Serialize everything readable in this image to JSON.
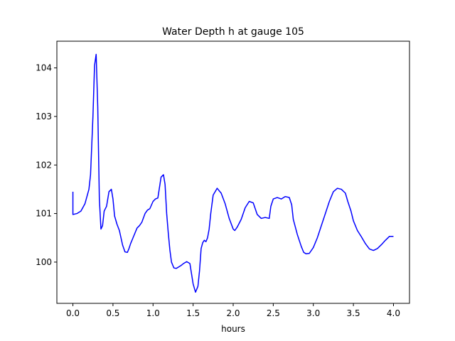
{
  "chart_data": {
    "type": "line",
    "title": "Water Depth h at gauge 105",
    "xlabel": "hours",
    "ylabel": "",
    "xlim": [
      -0.2,
      4.2
    ],
    "ylim": [
      99.15,
      104.55
    ],
    "xticks": [
      0.0,
      0.5,
      1.0,
      1.5,
      2.0,
      2.5,
      3.0,
      3.5,
      4.0
    ],
    "xtick_labels": [
      "0.0",
      "0.5",
      "1.0",
      "1.5",
      "2.0",
      "2.5",
      "3.0",
      "3.5",
      "4.0"
    ],
    "yticks": [
      100,
      101,
      102,
      103,
      104
    ],
    "ytick_labels": [
      "100",
      "101",
      "102",
      "103",
      "104"
    ],
    "grid": false,
    "series": [
      {
        "color": "#0000ff",
        "x": [
          0.0,
          0.0,
          0.05,
          0.1,
          0.15,
          0.2,
          0.22,
          0.25,
          0.27,
          0.29,
          0.31,
          0.33,
          0.35,
          0.37,
          0.39,
          0.42,
          0.45,
          0.48,
          0.5,
          0.52,
          0.55,
          0.58,
          0.62,
          0.65,
          0.68,
          0.7,
          0.72,
          0.75,
          0.8,
          0.83,
          0.86,
          0.9,
          0.93,
          0.96,
          1.0,
          1.03,
          1.06,
          1.1,
          1.13,
          1.15,
          1.17,
          1.19,
          1.21,
          1.23,
          1.26,
          1.29,
          1.32,
          1.35,
          1.38,
          1.42,
          1.46,
          1.5,
          1.53,
          1.56,
          1.58,
          1.6,
          1.62,
          1.64,
          1.66,
          1.68,
          1.7,
          1.72,
          1.75,
          1.8,
          1.85,
          1.9,
          1.95,
          2.0,
          2.02,
          2.05,
          2.1,
          2.15,
          2.2,
          2.25,
          2.3,
          2.35,
          2.4,
          2.45,
          2.47,
          2.5,
          2.55,
          2.6,
          2.65,
          2.7,
          2.73,
          2.75,
          2.8,
          2.85,
          2.88,
          2.91,
          2.95,
          3.0,
          3.05,
          3.1,
          3.15,
          3.2,
          3.25,
          3.3,
          3.35,
          3.4,
          3.43,
          3.47,
          3.5,
          3.55,
          3.6,
          3.65,
          3.7,
          3.75,
          3.8,
          3.85,
          3.9,
          3.95,
          4.0
        ],
        "y": [
          101.45,
          100.98,
          101.0,
          101.05,
          101.2,
          101.5,
          101.8,
          103.0,
          104.05,
          104.28,
          103.2,
          101.3,
          100.68,
          100.75,
          101.05,
          101.15,
          101.45,
          101.5,
          101.3,
          100.95,
          100.78,
          100.65,
          100.35,
          100.21,
          100.2,
          100.28,
          100.38,
          100.5,
          100.7,
          100.75,
          100.82,
          101.0,
          101.07,
          101.1,
          101.25,
          101.3,
          101.32,
          101.75,
          101.8,
          101.6,
          101.0,
          100.6,
          100.25,
          100.0,
          99.88,
          99.87,
          99.9,
          99.93,
          99.97,
          100.01,
          99.97,
          99.55,
          99.38,
          99.5,
          99.82,
          100.28,
          100.4,
          100.45,
          100.42,
          100.5,
          100.68,
          101.0,
          101.38,
          101.52,
          101.42,
          101.2,
          100.9,
          100.68,
          100.65,
          100.72,
          100.88,
          101.12,
          101.25,
          101.22,
          100.98,
          100.9,
          100.92,
          100.9,
          101.15,
          101.3,
          101.33,
          101.3,
          101.35,
          101.33,
          101.18,
          100.88,
          100.57,
          100.32,
          100.2,
          100.17,
          100.18,
          100.3,
          100.5,
          100.75,
          101.0,
          101.25,
          101.45,
          101.52,
          101.5,
          101.42,
          101.25,
          101.05,
          100.85,
          100.65,
          100.52,
          100.38,
          100.27,
          100.24,
          100.28,
          100.36,
          100.45,
          100.53,
          100.53
        ]
      }
    ]
  }
}
